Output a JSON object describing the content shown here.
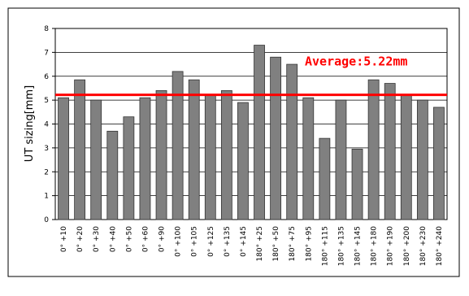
{
  "chart_data": {
    "type": "bar",
    "y_label": "UT sizing[mm]",
    "categories": [
      "0° +10",
      "0° +20",
      "0° +30",
      "0° +40",
      "0° +50",
      "0° +60",
      "0° +90",
      "0° +100",
      "0° +105",
      "0° +125",
      "0° +135",
      "0° +145",
      "180° +25",
      "180° +50",
      "180° +75",
      "180° +95",
      "180° +115",
      "180° +135",
      "180° +145",
      "180° +180",
      "180° +190",
      "180° +200",
      "180° +230",
      "180° +240"
    ],
    "values": [
      5.1,
      5.85,
      5.0,
      3.7,
      4.3,
      5.1,
      5.4,
      6.2,
      5.85,
      5.2,
      5.4,
      4.9,
      7.3,
      6.8,
      6.5,
      5.1,
      3.4,
      5.0,
      2.95,
      5.85,
      5.7,
      5.2,
      5.0,
      4.7
    ],
    "color": "#808080",
    "ylim": [
      0,
      8
    ],
    "yticks": [
      0,
      1,
      2,
      3,
      4,
      5,
      6,
      7,
      8
    ],
    "grid": true,
    "reference_line": {
      "value": 5.22,
      "label": "Average:5.22mm",
      "color": "#ff0000"
    }
  }
}
